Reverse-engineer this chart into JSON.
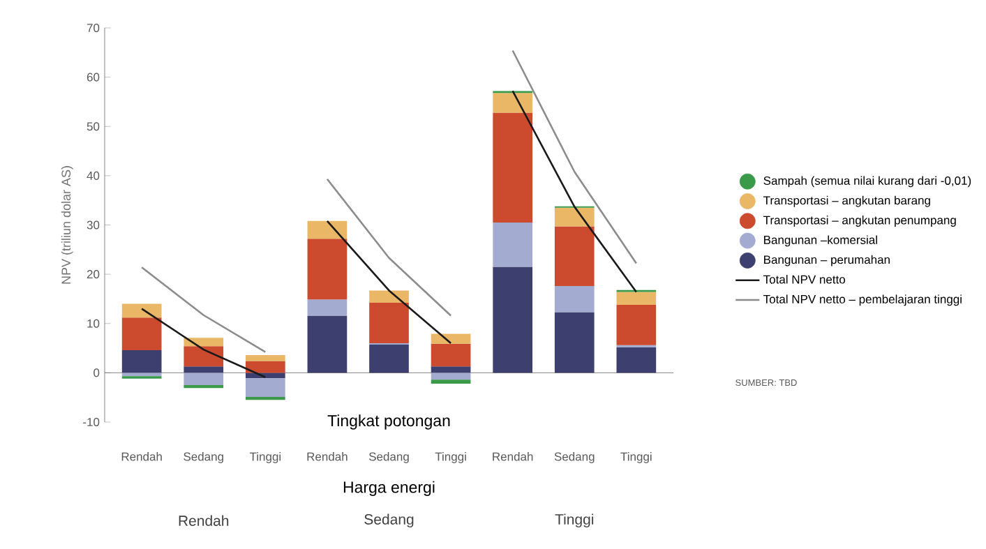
{
  "chart_data": {
    "type": "bar",
    "stacked": true,
    "ylabel": "NPV (triliun dolar AS)",
    "xlabel": "Harga energi",
    "categories": [
      "Rendah",
      "Sedang",
      "Tinggi",
      "Rendah",
      "Sedang",
      "Tinggi",
      "Rendah",
      "Sedang",
      "Tinggi"
    ],
    "series": [
      {
        "name": "Bangunan – perumahan",
        "color": "#3d3f6e",
        "values": [
          4.6,
          1.3,
          -1.1,
          11.6,
          5.7,
          1.3,
          21.5,
          12.3,
          5.2
        ]
      },
      {
        "name": "Bangunan –komersial",
        "color": "#a3abd0",
        "values": [
          -0.7,
          -2.5,
          -3.8,
          3.3,
          0.3,
          -1.4,
          9.0,
          5.3,
          0.4
        ]
      },
      {
        "name": "Transportasi – angkutan penumpang",
        "color": "#cc4a2e",
        "values": [
          6.6,
          4.1,
          2.4,
          12.3,
          8.2,
          4.6,
          22.3,
          12.1,
          8.2
        ]
      },
      {
        "name": "Transportasi – angkutan barang",
        "color": "#e9b765",
        "values": [
          2.8,
          1.7,
          1.2,
          3.6,
          2.5,
          2.0,
          4.0,
          3.8,
          2.6
        ]
      },
      {
        "name": "Sampah (semua nilai kurang dari -0,01)",
        "color": "#3a9a4a",
        "values": [
          -0.5,
          -0.6,
          -0.6,
          null,
          null,
          -0.8,
          0.4,
          0.3,
          0.4
        ]
      },
      {
        "name": "Total NPV netto",
        "type": "line",
        "color": "#1a1a1a",
        "values": [
          13.0,
          4.7,
          -0.9,
          null,
          null,
          null,
          null,
          null,
          null
        ]
      },
      {
        "type": "line",
        "color": "#1a1a1a",
        "values": [
          null,
          null,
          null,
          30.8,
          16.7,
          6.0,
          null,
          null,
          null
        ]
      },
      {
        "type": "line",
        "color": "#1a1a1a",
        "values": [
          null,
          null,
          null,
          null,
          null,
          null,
          57.2,
          33.7,
          16.4
        ]
      },
      {
        "name": "Total NPV netto – pembelajaran tinggi",
        "type": "line",
        "color": "#8c8c8c",
        "values": [
          21.4,
          11.7,
          4.2,
          null,
          null,
          null,
          null,
          null,
          null
        ]
      },
      {
        "type": "line",
        "color": "#8c8c8c",
        "values": [
          null,
          null,
          null,
          39.3,
          23.3,
          11.6,
          null,
          null,
          null
        ]
      },
      {
        "type": "line",
        "color": "#8c8c8c",
        "values": [
          null,
          null,
          null,
          null,
          null,
          null,
          65.4,
          40.8,
          22.2
        ]
      }
    ],
    "ylim": [
      -10,
      70
    ],
    "yticks": [
      -10,
      0,
      10,
      20,
      30,
      40,
      50,
      60,
      70
    ],
    "legend": "right",
    "annotations": [
      "Tingkat potongan",
      "Rendah",
      "Sedang",
      "Tinggi",
      "SUMBER: TBD"
    ]
  }
}
